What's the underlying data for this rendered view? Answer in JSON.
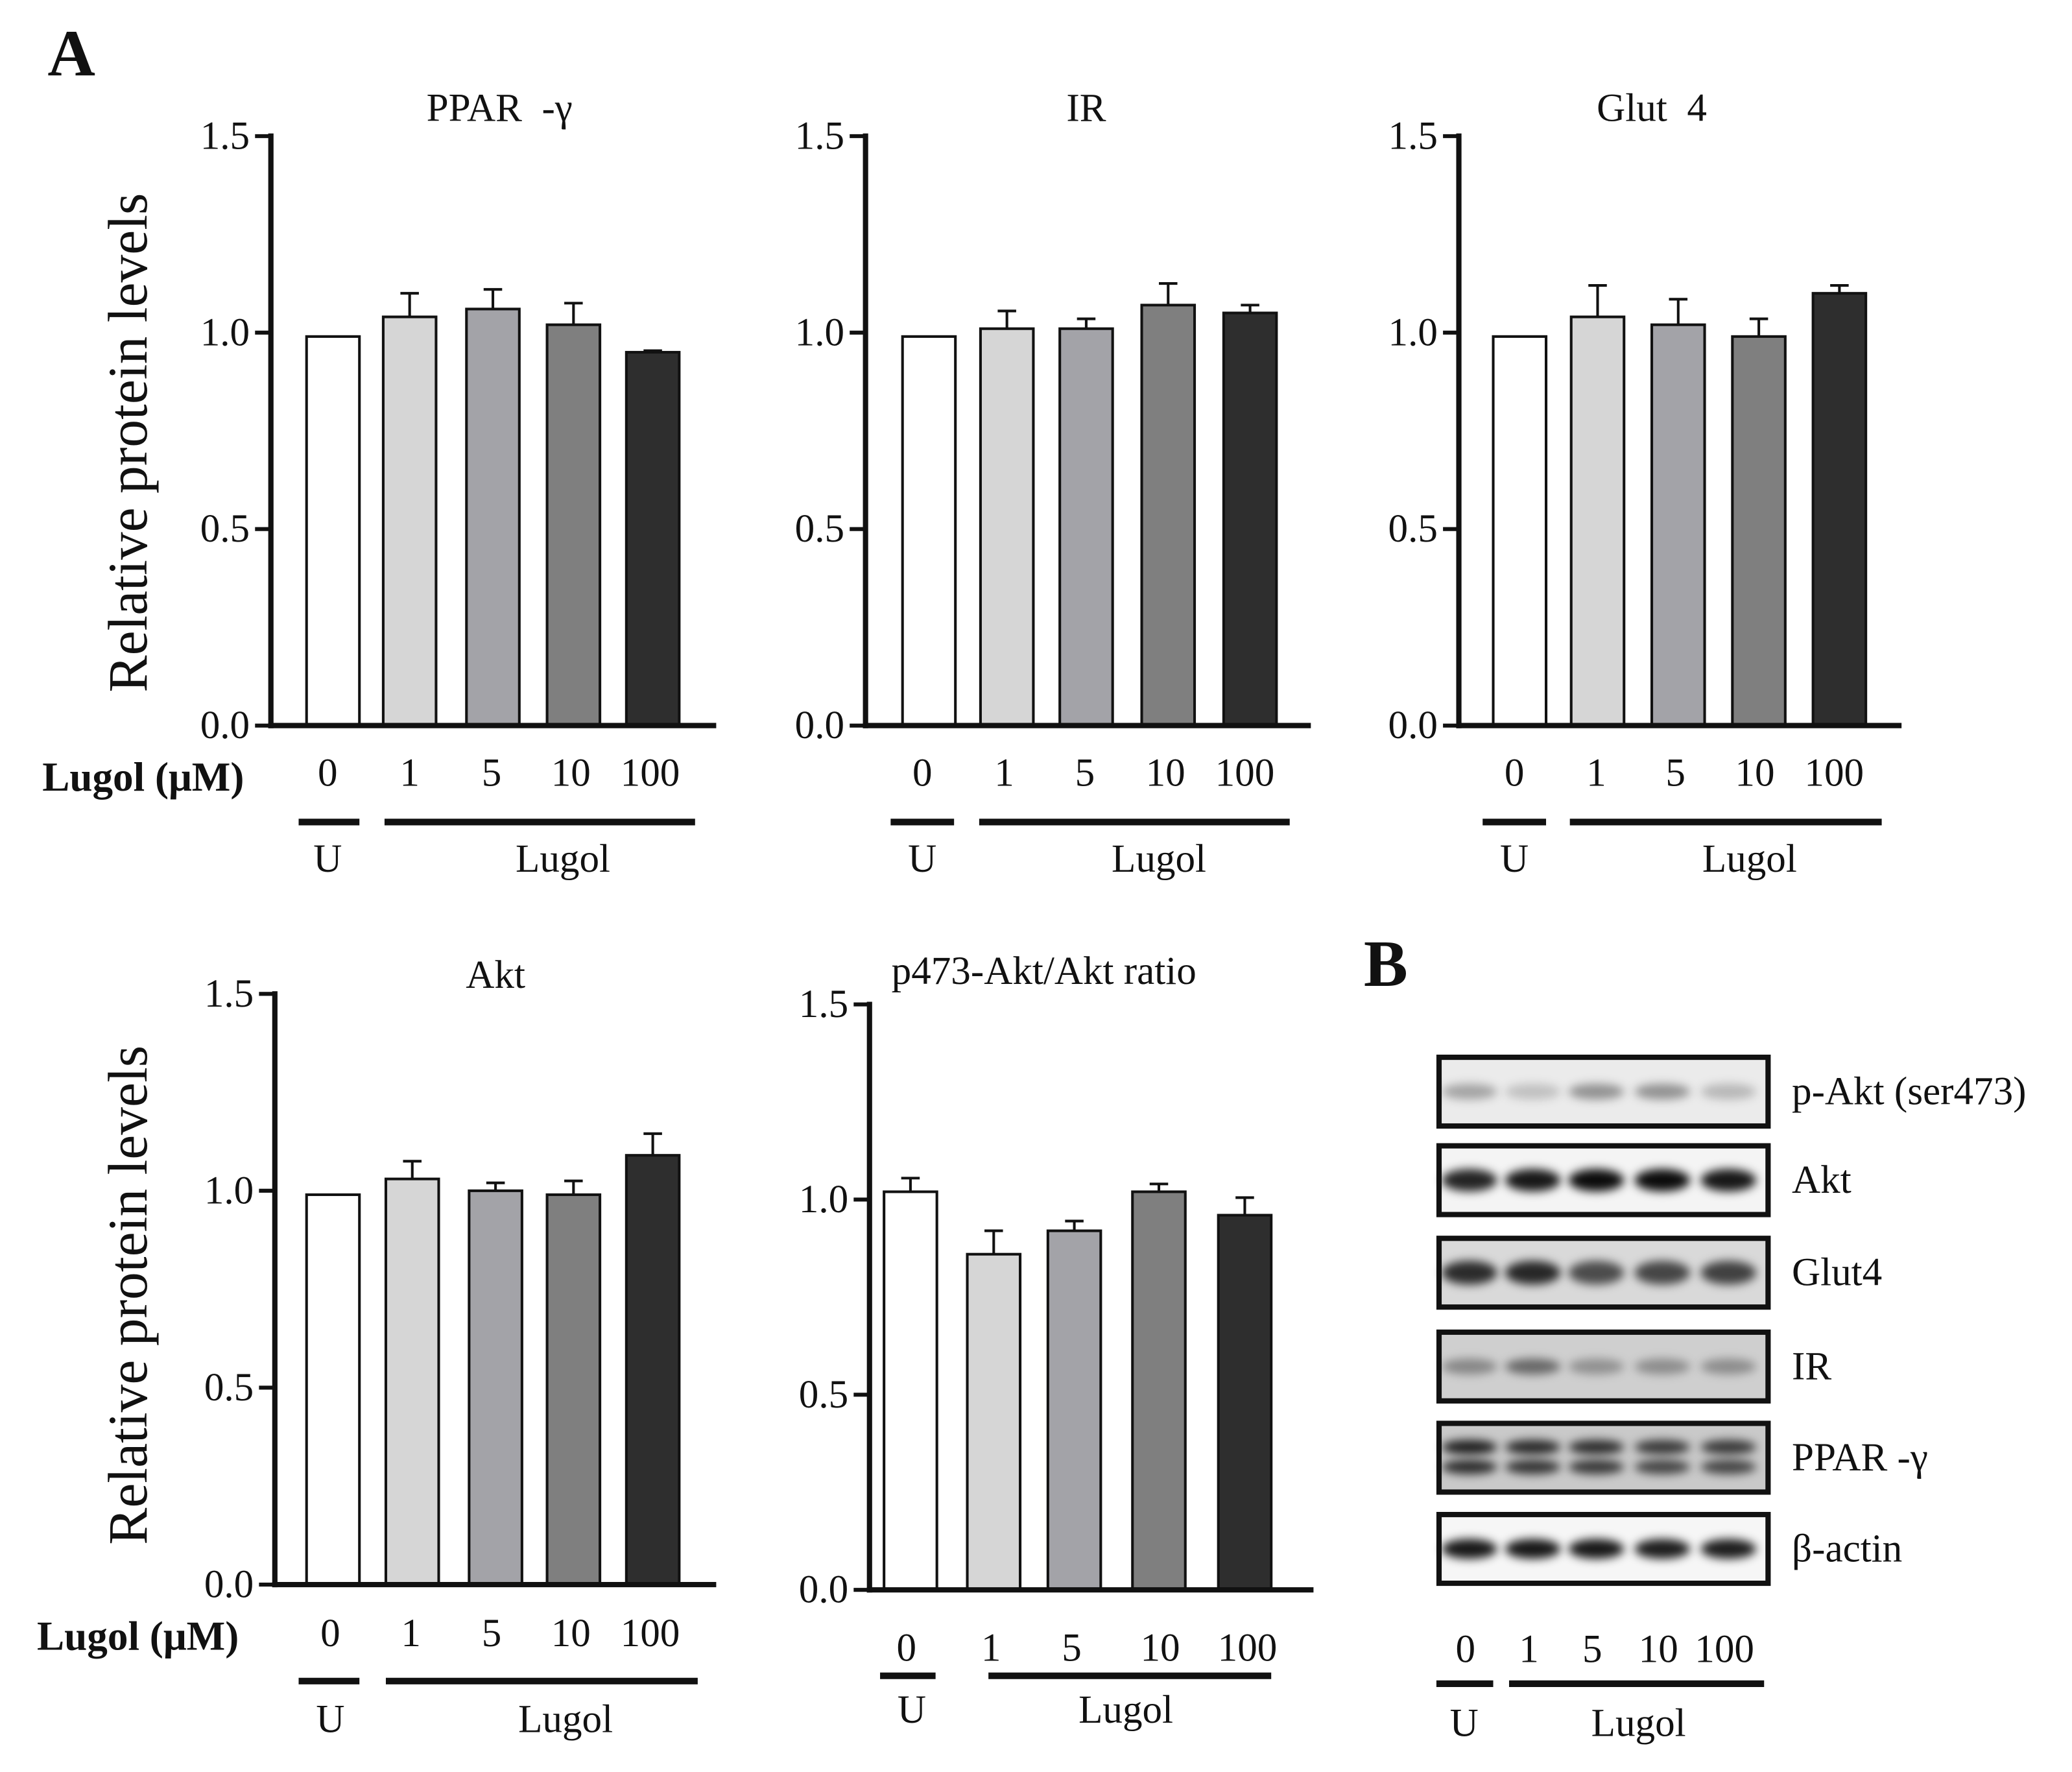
{
  "figure": {
    "panel_a_label": "A",
    "panel_b_label": "B"
  },
  "chart_data": [
    {
      "type": "bar",
      "title": "PPAR  -γ",
      "ylabel": "Relative protein levels",
      "xlabel": "Lugol (μM)",
      "categories": [
        "0",
        "1",
        "5",
        "10",
        "100"
      ],
      "groups": [
        "U",
        "Lugol"
      ],
      "values": [
        0.99,
        1.04,
        1.06,
        1.02,
        0.95
      ],
      "errors": [
        0,
        0.06,
        0.05,
        0.055,
        0.004
      ],
      "ylim": [
        0,
        1.5
      ],
      "yticks": [
        "0.0",
        "0.5",
        "1.0",
        "1.5"
      ],
      "colors": [
        "#ffffff",
        "#d6d6d6",
        "#a3a3a8",
        "#7f7f7f",
        "#2e2e2e"
      ]
    },
    {
      "type": "bar",
      "title": "IR",
      "categories": [
        "0",
        "1",
        "5",
        "10",
        "100"
      ],
      "groups": [
        "U",
        "Lugol"
      ],
      "values": [
        0.99,
        1.01,
        1.01,
        1.07,
        1.05
      ],
      "errors": [
        0,
        0.045,
        0.025,
        0.055,
        0.02
      ],
      "ylim": [
        0,
        1.5
      ],
      "yticks": [
        "0.0",
        "0.5",
        "1.0",
        "1.5"
      ],
      "colors": [
        "#ffffff",
        "#d6d6d6",
        "#a3a3a8",
        "#7f7f7f",
        "#2e2e2e"
      ]
    },
    {
      "type": "bar",
      "title": "Glut  4",
      "categories": [
        "0",
        "1",
        "5",
        "10",
        "100"
      ],
      "groups": [
        "U",
        "Lugol"
      ],
      "values": [
        0.99,
        1.04,
        1.02,
        0.99,
        1.1
      ],
      "errors": [
        0,
        0.08,
        0.065,
        0.045,
        0.02
      ],
      "ylim": [
        0,
        1.5
      ],
      "yticks": [
        "0.0",
        "0.5",
        "1.0",
        "1.5"
      ],
      "colors": [
        "#ffffff",
        "#d6d6d6",
        "#a3a3a8",
        "#7f7f7f",
        "#2e2e2e"
      ]
    },
    {
      "type": "bar",
      "title": "Akt",
      "ylabel": "Relative protein levels",
      "xlabel": "Lugol (μM)",
      "categories": [
        "0",
        "1",
        "5",
        "10",
        "100"
      ],
      "groups": [
        "U",
        "Lugol"
      ],
      "values": [
        0.99,
        1.03,
        1.0,
        0.99,
        1.09
      ],
      "errors": [
        0,
        0.045,
        0.02,
        0.035,
        0.055
      ],
      "ylim": [
        0,
        1.5
      ],
      "yticks": [
        "0.0",
        "0.5",
        "1.0",
        "1.5"
      ],
      "colors": [
        "#ffffff",
        "#d6d6d6",
        "#a3a3a8",
        "#7f7f7f",
        "#2e2e2e"
      ]
    },
    {
      "type": "bar",
      "title": "p473-Akt/Akt ratio",
      "categories": [
        "0",
        "1",
        "5",
        "10",
        "100"
      ],
      "groups": [
        "U",
        "Lugol"
      ],
      "values": [
        1.02,
        0.86,
        0.92,
        1.02,
        0.96
      ],
      "errors": [
        0.035,
        0.06,
        0.025,
        0.02,
        0.045
      ],
      "ylim": [
        0,
        1.5
      ],
      "yticks": [
        "0.0",
        "0.5",
        "1.0",
        "1.5"
      ],
      "colors": [
        "#ffffff",
        "#d6d6d6",
        "#a3a3a8",
        "#7f7f7f",
        "#2e2e2e"
      ]
    }
  ],
  "blot": {
    "lanes": [
      "0",
      "1",
      "5",
      "10",
      "100"
    ],
    "groups": [
      "U",
      "Lugol"
    ],
    "rows": [
      {
        "label": "p-Akt (ser473)",
        "background": "#ebebeb",
        "bands": 1,
        "intensities": [
          0.3,
          0.18,
          0.38,
          0.38,
          0.22
        ]
      },
      {
        "label": "Akt",
        "background": "#f4f4f4",
        "bands": 1,
        "intensities": [
          0.85,
          0.9,
          0.95,
          0.95,
          0.9
        ]
      },
      {
        "label": "Glut4",
        "background": "#d9d9d9",
        "bands": 1,
        "intensities": [
          0.8,
          0.82,
          0.65,
          0.68,
          0.7
        ]
      },
      {
        "label": "IR",
        "background": "#cfcfcf",
        "bands": 1,
        "intensities": [
          0.35,
          0.5,
          0.3,
          0.32,
          0.32
        ]
      },
      {
        "label": "PPAR -γ",
        "background": "#c9c9c9",
        "bands": 2,
        "intensities": [
          0.85,
          0.8,
          0.78,
          0.72,
          0.72
        ]
      },
      {
        "label": "β-actin",
        "background": "#f6f6f6",
        "bands": 1,
        "intensities": [
          0.9,
          0.9,
          0.9,
          0.88,
          0.88
        ]
      }
    ]
  }
}
